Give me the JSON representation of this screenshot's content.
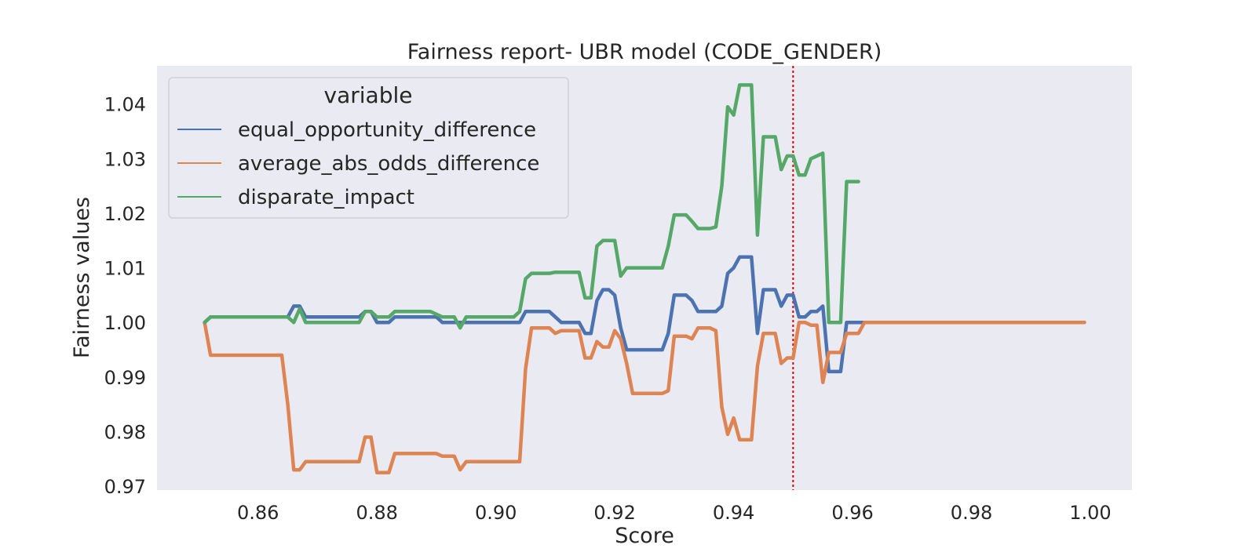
{
  "chart_data": {
    "type": "line",
    "title": "Fairness report- UBR  model (CODE_GENDER)",
    "xlabel": "Score",
    "ylabel": "Fairness values",
    "xlim": [
      0.843,
      1.007
    ],
    "ylim": [
      0.9693,
      1.047
    ],
    "xticks": [
      0.86,
      0.88,
      0.9,
      0.92,
      0.94,
      0.96,
      0.98,
      1.0
    ],
    "xtick_labels": [
      "0.86",
      "0.88",
      "0.90",
      "0.92",
      "0.94",
      "0.96",
      "0.98",
      "1.00"
    ],
    "yticks": [
      0.97,
      0.98,
      0.99,
      1.0,
      1.01,
      1.02,
      1.03,
      1.04
    ],
    "ytick_labels": [
      "0.97",
      "0.98",
      "0.99",
      "1.00",
      "1.01",
      "1.02",
      "1.03",
      "1.04"
    ],
    "grid": false,
    "background": "#eaeaf2",
    "legend": {
      "title": "variable",
      "position": "top-left"
    },
    "threshold_line": {
      "x": 0.95,
      "style": "dotted",
      "color": "#e00000"
    },
    "series": [
      {
        "name": "equal_opportunity_difference",
        "color": "#4c72b0",
        "points": [
          [
            0.851,
            1.0
          ],
          [
            0.852,
            1.001
          ],
          [
            0.865,
            1.001
          ],
          [
            0.866,
            1.003
          ],
          [
            0.867,
            1.003
          ],
          [
            0.868,
            1.001
          ],
          [
            0.877,
            1.001
          ],
          [
            0.878,
            1.002
          ],
          [
            0.879,
            1.002
          ],
          [
            0.88,
            1.0
          ],
          [
            0.882,
            1.0
          ],
          [
            0.883,
            1.001
          ],
          [
            0.89,
            1.001
          ],
          [
            0.891,
            1.0
          ],
          [
            0.904,
            1.0
          ],
          [
            0.905,
            1.002
          ],
          [
            0.909,
            1.002
          ],
          [
            0.911,
            1.0
          ],
          [
            0.914,
            1.0
          ],
          [
            0.915,
            0.998
          ],
          [
            0.916,
            0.998
          ],
          [
            0.917,
            1.004
          ],
          [
            0.918,
            1.006
          ],
          [
            0.919,
            1.006
          ],
          [
            0.92,
            1.005
          ],
          [
            0.921,
            0.999
          ],
          [
            0.922,
            0.995
          ],
          [
            0.928,
            0.995
          ],
          [
            0.929,
            0.998
          ],
          [
            0.93,
            1.005
          ],
          [
            0.932,
            1.005
          ],
          [
            0.933,
            1.004
          ],
          [
            0.934,
            1.002
          ],
          [
            0.937,
            1.002
          ],
          [
            0.938,
            1.003
          ],
          [
            0.939,
            1.009
          ],
          [
            0.94,
            1.01
          ],
          [
            0.941,
            1.012
          ],
          [
            0.943,
            1.012
          ],
          [
            0.944,
            0.998
          ],
          [
            0.945,
            1.006
          ],
          [
            0.947,
            1.006
          ],
          [
            0.948,
            1.003
          ],
          [
            0.949,
            1.005
          ],
          [
            0.95,
            1.005
          ],
          [
            0.951,
            1.001
          ],
          [
            0.952,
            1.001
          ],
          [
            0.953,
            1.002
          ],
          [
            0.954,
            1.002
          ],
          [
            0.955,
            1.003
          ],
          [
            0.956,
            0.991
          ],
          [
            0.958,
            0.991
          ],
          [
            0.959,
            1.0
          ],
          [
            0.999,
            1.0
          ]
        ]
      },
      {
        "name": "average_abs_odds_difference",
        "color": "#dd8452",
        "points": [
          [
            0.851,
            1.0
          ],
          [
            0.852,
            0.994
          ],
          [
            0.864,
            0.994
          ],
          [
            0.865,
            0.985
          ],
          [
            0.866,
            0.973
          ],
          [
            0.867,
            0.973
          ],
          [
            0.868,
            0.9745
          ],
          [
            0.877,
            0.9745
          ],
          [
            0.878,
            0.979
          ],
          [
            0.879,
            0.979
          ],
          [
            0.88,
            0.9725
          ],
          [
            0.882,
            0.9725
          ],
          [
            0.883,
            0.976
          ],
          [
            0.89,
            0.976
          ],
          [
            0.891,
            0.9755
          ],
          [
            0.893,
            0.9755
          ],
          [
            0.894,
            0.973
          ],
          [
            0.895,
            0.9745
          ],
          [
            0.904,
            0.9745
          ],
          [
            0.905,
            0.9915
          ],
          [
            0.906,
            0.999
          ],
          [
            0.909,
            0.999
          ],
          [
            0.91,
            0.998
          ],
          [
            0.911,
            0.9985
          ],
          [
            0.914,
            0.9985
          ],
          [
            0.915,
            0.9935
          ],
          [
            0.916,
            0.9935
          ],
          [
            0.917,
            0.9965
          ],
          [
            0.918,
            0.9955
          ],
          [
            0.919,
            0.9955
          ],
          [
            0.92,
            0.9985
          ],
          [
            0.921,
            0.997
          ],
          [
            0.922,
            0.9925
          ],
          [
            0.923,
            0.987
          ],
          [
            0.928,
            0.987
          ],
          [
            0.929,
            0.9875
          ],
          [
            0.93,
            0.9975
          ],
          [
            0.932,
            0.9975
          ],
          [
            0.933,
            0.997
          ],
          [
            0.934,
            0.999
          ],
          [
            0.936,
            0.999
          ],
          [
            0.937,
            0.9985
          ],
          [
            0.938,
            0.9845
          ],
          [
            0.939,
            0.9795
          ],
          [
            0.94,
            0.9825
          ],
          [
            0.941,
            0.9785
          ],
          [
            0.943,
            0.9785
          ],
          [
            0.944,
            0.992
          ],
          [
            0.945,
            0.998
          ],
          [
            0.947,
            0.998
          ],
          [
            0.948,
            0.9925
          ],
          [
            0.949,
            0.9935
          ],
          [
            0.95,
            0.9935
          ],
          [
            0.951,
            1.0
          ],
          [
            0.952,
            1.0
          ],
          [
            0.953,
            0.9995
          ],
          [
            0.954,
            0.9995
          ],
          [
            0.955,
            0.989
          ],
          [
            0.956,
            0.9945
          ],
          [
            0.958,
            0.9945
          ],
          [
            0.959,
            0.998
          ],
          [
            0.961,
            0.998
          ],
          [
            0.962,
            1.0
          ],
          [
            0.999,
            1.0
          ]
        ]
      },
      {
        "name": "disparate_impact",
        "color": "#55a868",
        "points": [
          [
            0.851,
            1.0
          ],
          [
            0.852,
            1.001
          ],
          [
            0.865,
            1.001
          ],
          [
            0.866,
            1.0
          ],
          [
            0.867,
            1.0025
          ],
          [
            0.868,
            1.0
          ],
          [
            0.877,
            1.0
          ],
          [
            0.878,
            1.002
          ],
          [
            0.879,
            1.002
          ],
          [
            0.88,
            1.001
          ],
          [
            0.882,
            1.001
          ],
          [
            0.883,
            1.002
          ],
          [
            0.889,
            1.002
          ],
          [
            0.891,
            1.001
          ],
          [
            0.893,
            1.001
          ],
          [
            0.894,
            0.999
          ],
          [
            0.895,
            1.001
          ],
          [
            0.903,
            1.001
          ],
          [
            0.904,
            1.002
          ],
          [
            0.905,
            1.008
          ],
          [
            0.906,
            1.009
          ],
          [
            0.909,
            1.009
          ],
          [
            0.91,
            1.0092
          ],
          [
            0.914,
            1.0092
          ],
          [
            0.915,
            1.0045
          ],
          [
            0.916,
            1.0045
          ],
          [
            0.917,
            1.014
          ],
          [
            0.918,
            1.015
          ],
          [
            0.92,
            1.015
          ],
          [
            0.921,
            1.0085
          ],
          [
            0.922,
            1.01
          ],
          [
            0.928,
            1.01
          ],
          [
            0.929,
            1.014
          ],
          [
            0.93,
            1.0197
          ],
          [
            0.932,
            1.0197
          ],
          [
            0.933,
            1.0185
          ],
          [
            0.934,
            1.0172
          ],
          [
            0.936,
            1.0172
          ],
          [
            0.937,
            1.0175
          ],
          [
            0.938,
            1.025
          ],
          [
            0.939,
            1.0395
          ],
          [
            0.94,
            1.038
          ],
          [
            0.941,
            1.0435
          ],
          [
            0.943,
            1.0435
          ],
          [
            0.944,
            1.016
          ],
          [
            0.945,
            1.034
          ],
          [
            0.947,
            1.034
          ],
          [
            0.948,
            1.028
          ],
          [
            0.949,
            1.0305
          ],
          [
            0.95,
            1.0305
          ],
          [
            0.951,
            1.027
          ],
          [
            0.952,
            1.027
          ],
          [
            0.953,
            1.03
          ],
          [
            0.954,
            1.0305
          ],
          [
            0.955,
            1.031
          ],
          [
            0.956,
            1.0
          ],
          [
            0.958,
            1.0
          ],
          [
            0.959,
            1.0258
          ],
          [
            0.961,
            1.0258
          ]
        ]
      }
    ]
  }
}
